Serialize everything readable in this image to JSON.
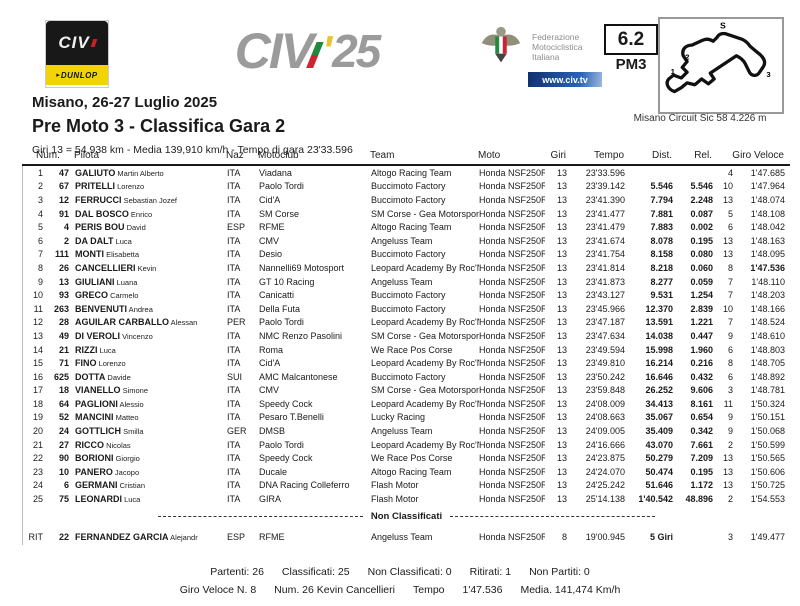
{
  "colors": {
    "dunlop_yellow": "#f2d500",
    "civtv_blue": "#1a3f8f",
    "logo_gray": "#9b9b9b",
    "accent_red": "#cf2233",
    "accent_green": "#1e8a3c"
  },
  "header": {
    "civ_box": {
      "civ": "CIV",
      "dunlop": "DUNLOP"
    },
    "main_logo": {
      "word": "CIV",
      "apos": "'",
      "year": "25"
    },
    "fmi": {
      "line1": "Federazione",
      "line2": "Motociclistica",
      "line3": "Italiana",
      "site": "www.civ.tv"
    },
    "session": {
      "number": "6.2",
      "code": "PM3"
    },
    "map_labels": {
      "s": "S",
      "t1": "1",
      "t2": "2",
      "t3": "3"
    },
    "circuit_caption": "Misano Circuit Sic 58 4.226 m"
  },
  "title": {
    "event": "Misano, 26-27 Luglio 2025",
    "race": "Pre Moto 3 - Classifica Gara 2",
    "stats": "Giri 13 = 54,938 km  -  Media 139,910 km/h  -  Tempo di gara 23'33.596"
  },
  "table": {
    "headers": [
      "Num.",
      "Pilota",
      "Naz",
      "Motoclub",
      "Team",
      "Moto",
      "Giri",
      "Tempo",
      "Dist.",
      "Rel.",
      "Giro Veloce"
    ],
    "rows": [
      {
        "pos": "1",
        "num": "47",
        "last": "GALIUTO",
        "first": "Martin Alberto",
        "naz": "ITA",
        "club": "Viadana",
        "team": "Altogo Racing Team",
        "moto": "Honda NSF250R",
        "giri": "13",
        "tempo": "23'33.596",
        "dist": "",
        "rel": "",
        "lap": "4",
        "best": "1'47.685",
        "fl": false
      },
      {
        "pos": "2",
        "num": "67",
        "last": "PRITELLI",
        "first": "Lorenzo",
        "naz": "ITA",
        "club": "Paolo Tordi",
        "team": "Buccimoto Factory",
        "moto": "Honda NSF250R",
        "giri": "13",
        "tempo": "23'39.142",
        "dist": "5.546",
        "rel": "5.546",
        "lap": "10",
        "best": "1'47.964",
        "fl": false
      },
      {
        "pos": "3",
        "num": "12",
        "last": "FERRUCCI",
        "first": "Sebastian Jozef",
        "naz": "ITA",
        "club": "Cid'A",
        "team": "Buccimoto Factory",
        "moto": "Honda NSF250R",
        "giri": "13",
        "tempo": "23'41.390",
        "dist": "7.794",
        "rel": "2.248",
        "lap": "13",
        "best": "1'48.074",
        "fl": false
      },
      {
        "pos": "4",
        "num": "91",
        "last": "DAL BOSCO",
        "first": "Enrico",
        "naz": "ITA",
        "club": "SM Corse",
        "team": "SM Corse - Gea Motorsport",
        "moto": "Honda NSF250R",
        "giri": "13",
        "tempo": "23'41.477",
        "dist": "7.881",
        "rel": "0.087",
        "lap": "5",
        "best": "1'48.108",
        "fl": false
      },
      {
        "pos": "5",
        "num": "4",
        "last": "PERIS BOU",
        "first": "David",
        "naz": "ESP",
        "club": "RFME",
        "team": "Altogo Racing Team",
        "moto": "Honda NSF250R",
        "giri": "13",
        "tempo": "23'41.479",
        "dist": "7.883",
        "rel": "0.002",
        "lap": "6",
        "best": "1'48.042",
        "fl": false
      },
      {
        "pos": "6",
        "num": "2",
        "last": "DA DALT",
        "first": "Luca",
        "naz": "ITA",
        "club": "CMV",
        "team": "Angeluss Team",
        "moto": "Honda NSF250R",
        "giri": "13",
        "tempo": "23'41.674",
        "dist": "8.078",
        "rel": "0.195",
        "lap": "13",
        "best": "1'48.163",
        "fl": false
      },
      {
        "pos": "7",
        "num": "111",
        "last": "MONTI",
        "first": "Elisabetta",
        "naz": "ITA",
        "club": "Desio",
        "team": "Buccimoto Factory",
        "moto": "Honda NSF250R",
        "giri": "13",
        "tempo": "23'41.754",
        "dist": "8.158",
        "rel": "0.080",
        "lap": "13",
        "best": "1'48.095",
        "fl": false
      },
      {
        "pos": "8",
        "num": "26",
        "last": "CANCELLIERI",
        "first": "Kevin",
        "naz": "ITA",
        "club": "Nannelli69 Motosport",
        "team": "Leopard Academy By Roc'N'De",
        "moto": "Honda NSF250R",
        "giri": "13",
        "tempo": "23'41.814",
        "dist": "8.218",
        "rel": "0.060",
        "lap": "8",
        "best": "1'47.536",
        "fl": true
      },
      {
        "pos": "9",
        "num": "13",
        "last": "GIULIANI",
        "first": "Luana",
        "naz": "ITA",
        "club": "GT 10 Racing",
        "team": "Angeluss Team",
        "moto": "Honda NSF250R",
        "giri": "13",
        "tempo": "23'41.873",
        "dist": "8.277",
        "rel": "0.059",
        "lap": "7",
        "best": "1'48.110",
        "fl": false
      },
      {
        "pos": "10",
        "num": "93",
        "last": "GRECO",
        "first": "Carmelo",
        "naz": "ITA",
        "club": "Canicatti",
        "team": "Buccimoto Factory",
        "moto": "Honda NSF250R",
        "giri": "13",
        "tempo": "23'43.127",
        "dist": "9.531",
        "rel": "1.254",
        "lap": "7",
        "best": "1'48.203",
        "fl": false
      },
      {
        "pos": "11",
        "num": "263",
        "last": "BENVENUTI",
        "first": "Andrea",
        "naz": "ITA",
        "club": "Della Futa",
        "team": "Buccimoto Factory",
        "moto": "Honda NSF250R",
        "giri": "13",
        "tempo": "23'45.966",
        "dist": "12.370",
        "rel": "2.839",
        "lap": "10",
        "best": "1'48.166",
        "fl": false
      },
      {
        "pos": "12",
        "num": "28",
        "last": "AGUILAR CARBALLO",
        "first": "Alessan",
        "naz": "PER",
        "club": "Paolo Tordi",
        "team": "Leopard Academy By Roc'N'De",
        "moto": "Honda NSF250R",
        "giri": "13",
        "tempo": "23'47.187",
        "dist": "13.591",
        "rel": "1.221",
        "lap": "7",
        "best": "1'48.524",
        "fl": false
      },
      {
        "pos": "13",
        "num": "49",
        "last": "DI VEROLI",
        "first": "Vincenzo",
        "naz": "ITA",
        "club": "NMC Renzo Pasolini",
        "team": "SM Corse - Gea Motorsport",
        "moto": "Honda NSF250R",
        "giri": "13",
        "tempo": "23'47.634",
        "dist": "14.038",
        "rel": "0.447",
        "lap": "9",
        "best": "1'48.610",
        "fl": false
      },
      {
        "pos": "14",
        "num": "21",
        "last": "RIZZI",
        "first": "Luca",
        "naz": "ITA",
        "club": "Roma",
        "team": "We Race Pos Corse",
        "moto": "Honda NSF250R",
        "giri": "13",
        "tempo": "23'49.594",
        "dist": "15.998",
        "rel": "1.960",
        "lap": "6",
        "best": "1'48.803",
        "fl": false
      },
      {
        "pos": "15",
        "num": "71",
        "last": "FINO",
        "first": "Lorenzo",
        "naz": "ITA",
        "club": "Cid'A",
        "team": "Leopard Academy By Roc'N'De",
        "moto": "Honda NSF250R",
        "giri": "13",
        "tempo": "23'49.810",
        "dist": "16.214",
        "rel": "0.216",
        "lap": "8",
        "best": "1'48.705",
        "fl": false
      },
      {
        "pos": "16",
        "num": "625",
        "last": "DOTTA",
        "first": "Davide",
        "naz": "SUI",
        "club": "AMC Malcantonese",
        "team": "Buccimoto Factory",
        "moto": "Honda NSF250R",
        "giri": "13",
        "tempo": "23'50.242",
        "dist": "16.646",
        "rel": "0.432",
        "lap": "6",
        "best": "1'48.892",
        "fl": false
      },
      {
        "pos": "17",
        "num": "18",
        "last": "VIANELLO",
        "first": "Simone",
        "naz": "ITA",
        "club": "CMV",
        "team": "SM Corse - Gea Motorsport",
        "moto": "Honda NSF250R",
        "giri": "13",
        "tempo": "23'59.848",
        "dist": "26.252",
        "rel": "9.606",
        "lap": "3",
        "best": "1'48.781",
        "fl": false
      },
      {
        "pos": "18",
        "num": "64",
        "last": "PAGLIONI",
        "first": "Alessio",
        "naz": "ITA",
        "club": "Speedy Cock",
        "team": "Leopard Academy By Roc'N'De",
        "moto": "Honda NSF250R",
        "giri": "13",
        "tempo": "24'08.009",
        "dist": "34.413",
        "rel": "8.161",
        "lap": "11",
        "best": "1'50.324",
        "fl": false
      },
      {
        "pos": "19",
        "num": "52",
        "last": "MANCINI",
        "first": "Matteo",
        "naz": "ITA",
        "club": "Pesaro T.Benelli",
        "team": "Lucky Racing",
        "moto": "Honda NSF250R",
        "giri": "13",
        "tempo": "24'08.663",
        "dist": "35.067",
        "rel": "0.654",
        "lap": "9",
        "best": "1'50.151",
        "fl": false
      },
      {
        "pos": "20",
        "num": "24",
        "last": "GOTTLICH",
        "first": "Smilla",
        "naz": "GER",
        "club": "DMSB",
        "team": "Angeluss Team",
        "moto": "Honda NSF250R",
        "giri": "13",
        "tempo": "24'09.005",
        "dist": "35.409",
        "rel": "0.342",
        "lap": "9",
        "best": "1'50.068",
        "fl": false
      },
      {
        "pos": "21",
        "num": "27",
        "last": "RICCO",
        "first": "Nicolas",
        "naz": "ITA",
        "club": "Paolo Tordi",
        "team": "Leopard Academy By Roc'N'De",
        "moto": "Honda NSF250R",
        "giri": "13",
        "tempo": "24'16.666",
        "dist": "43.070",
        "rel": "7.661",
        "lap": "2",
        "best": "1'50.599",
        "fl": false
      },
      {
        "pos": "22",
        "num": "90",
        "last": "BORIONI",
        "first": "Giorgio",
        "naz": "ITA",
        "club": "Speedy Cock",
        "team": "We Race Pos Corse",
        "moto": "Honda NSF250R",
        "giri": "13",
        "tempo": "24'23.875",
        "dist": "50.279",
        "rel": "7.209",
        "lap": "13",
        "best": "1'50.565",
        "fl": false
      },
      {
        "pos": "23",
        "num": "10",
        "last": "PANERO",
        "first": "Jacopo",
        "naz": "ITA",
        "club": "Ducale",
        "team": "Altogo Racing Team",
        "moto": "Honda NSF250R",
        "giri": "13",
        "tempo": "24'24.070",
        "dist": "50.474",
        "rel": "0.195",
        "lap": "13",
        "best": "1'50.606",
        "fl": false
      },
      {
        "pos": "24",
        "num": "6",
        "last": "GERMANI",
        "first": "Cristian",
        "naz": "ITA",
        "club": "DNA Racing Colleferro",
        "team": "Flash Motor",
        "moto": "Honda NSF250R",
        "giri": "13",
        "tempo": "24'25.242",
        "dist": "51.646",
        "rel": "1.172",
        "lap": "13",
        "best": "1'50.725",
        "fl": false
      },
      {
        "pos": "25",
        "num": "75",
        "last": "LEONARDI",
        "first": "Luca",
        "naz": "ITA",
        "club": "GIRA",
        "team": "Flash Motor",
        "moto": "Honda NSF250R",
        "giri": "13",
        "tempo": "25'14.138",
        "dist": "1'40.542",
        "rel": "48.896",
        "lap": "2",
        "best": "1'54.553",
        "fl": false
      }
    ],
    "divider_label": "Non Classificati",
    "rit": {
      "pos": "RIT",
      "num": "22",
      "last": "FERNANDEZ GARCIA",
      "first": "Alejandr",
      "naz": "ESP",
      "club": "RFME",
      "team": "Angeluss Team",
      "moto": "Honda NSF250R",
      "giri": "8",
      "tempo": "19'00.945",
      "dist": "5 Giri",
      "rel": "",
      "lap": "3",
      "best": "1'49.477",
      "fl": false
    }
  },
  "footer": {
    "line1": [
      "Partenti: 26",
      "Classificati: 25",
      "Non Classificati: 0",
      "Ritirati: 1",
      "Non Partiti: 0"
    ],
    "line2": [
      "Giro Veloce N. 8",
      "Num. 26  Kevin Cancellieri",
      "Tempo",
      "1'47.536",
      "Media. 141,474 Km/h"
    ]
  }
}
